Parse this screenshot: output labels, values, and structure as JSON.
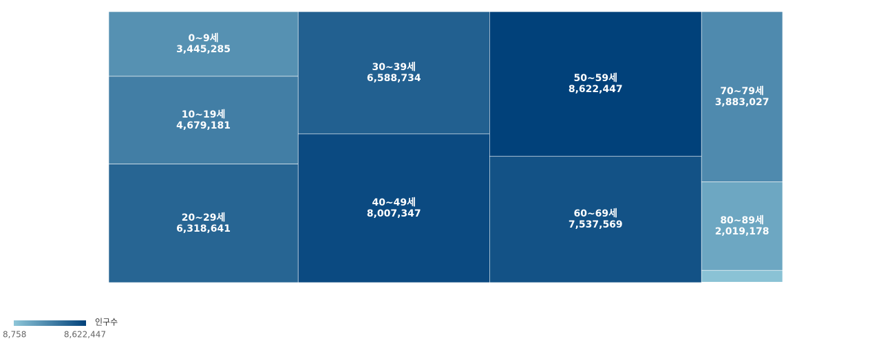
{
  "chart_data": {
    "type": "treemap",
    "categories": [
      "0~9세",
      "10~19세",
      "20~29세",
      "30~39세",
      "40~49세",
      "50~59세",
      "60~69세",
      "70~79세",
      "80~89세",
      null,
      null
    ],
    "values": [
      3445285,
      4679181,
      6318641,
      6588734,
      8007347,
      8622447,
      7537569,
      3883027,
      2019178,
      270000,
      8758
    ],
    "value_labels": [
      "3,445,285",
      "4,679,181",
      "6,318,641",
      "6,588,734",
      "8,007,347",
      "8,622,447",
      "7,537,569",
      "3,883,027",
      "2,019,178",
      null,
      null
    ],
    "color_scale": {
      "title": "인구수",
      "min": {
        "value": 8758,
        "label": "8,758"
      },
      "max": {
        "value": 8622447,
        "label": "8,622,447"
      },
      "colors": [
        "#8ec6d8",
        "#01417a"
      ]
    }
  }
}
